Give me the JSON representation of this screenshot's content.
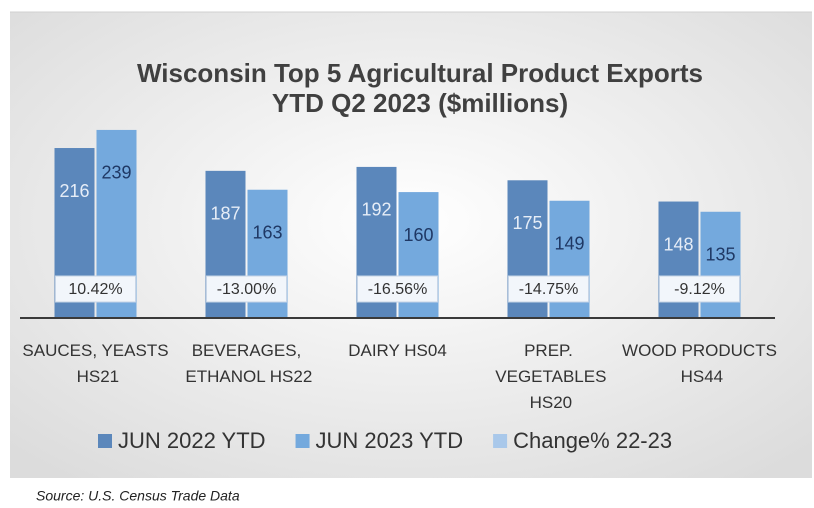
{
  "chart_data": {
    "type": "bar",
    "title": "Wisconsin Top 5 Agricultural Product Exports",
    "subtitle": "YTD Q2 2023 ($millions)",
    "categories": [
      "SAUCES, YEASTS HS21",
      "BEVERAGES, ETHANOL HS22",
      "DAIRY HS04",
      "PREP. VEGETABLES HS20",
      "WOOD PRODUCTS HS44"
    ],
    "series": [
      {
        "name": "JUN 2022 YTD",
        "color": "#5b87bb",
        "values": [
          216,
          187,
          192,
          175,
          148
        ]
      },
      {
        "name": "JUN 2023 YTD",
        "color": "#74a9dd",
        "values": [
          239,
          163,
          160,
          149,
          135
        ]
      },
      {
        "name": "Change% 22-23",
        "color": "#a9c8ea",
        "values": [
          0.1042,
          -0.13,
          -0.1656,
          -0.1475,
          -0.0912
        ],
        "value_labels": [
          "10.42%",
          "-13.00%",
          "-16.56%",
          "-14.75%",
          "-9.12%"
        ]
      }
    ],
    "ylim": [
      0,
      260
    ],
    "legend": "bottom",
    "source": "Source: U.S. Census Trade Data"
  }
}
